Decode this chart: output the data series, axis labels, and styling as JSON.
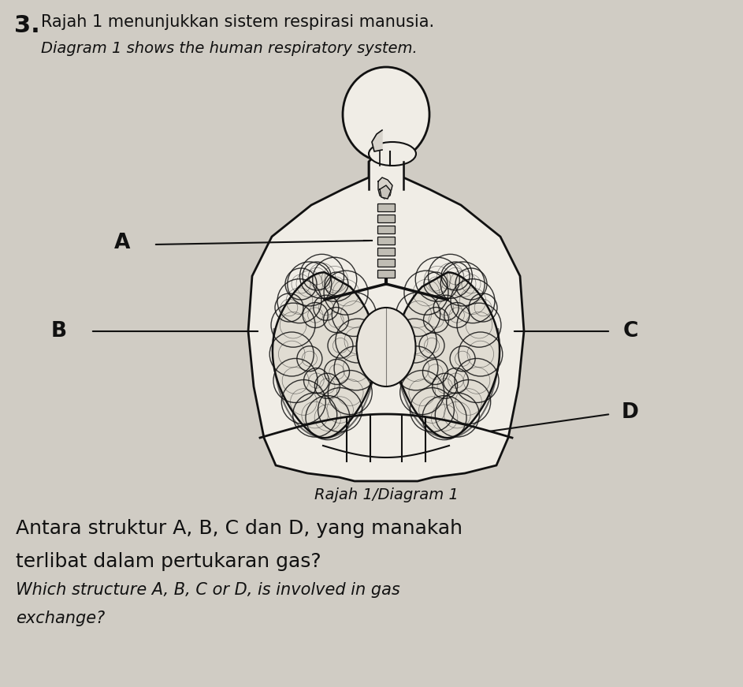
{
  "background_color": "#d0ccc4",
  "title_number": "3.",
  "title_malay": "Rajah 1 menunjukkan sistem respirasi manusia.",
  "title_english": "Diagram 1 shows the human respiratory system.",
  "caption": "Rajah 1/Diagram 1",
  "question_malay_1": "Antara struktur A, B, C dan D, yang manakah",
  "question_malay_2": "terlibat dalam pertukaran gas?",
  "question_english_1": "Which structure A, B, C or D, is involved in gas",
  "question_english_2": "exchange?",
  "text_color": "#111111",
  "line_color": "#111111",
  "body_fill": "#f0ede6",
  "body_edge": "#111111",
  "lung_fill": "#e0dcd2",
  "trachea_fill": "#c0bdb4"
}
